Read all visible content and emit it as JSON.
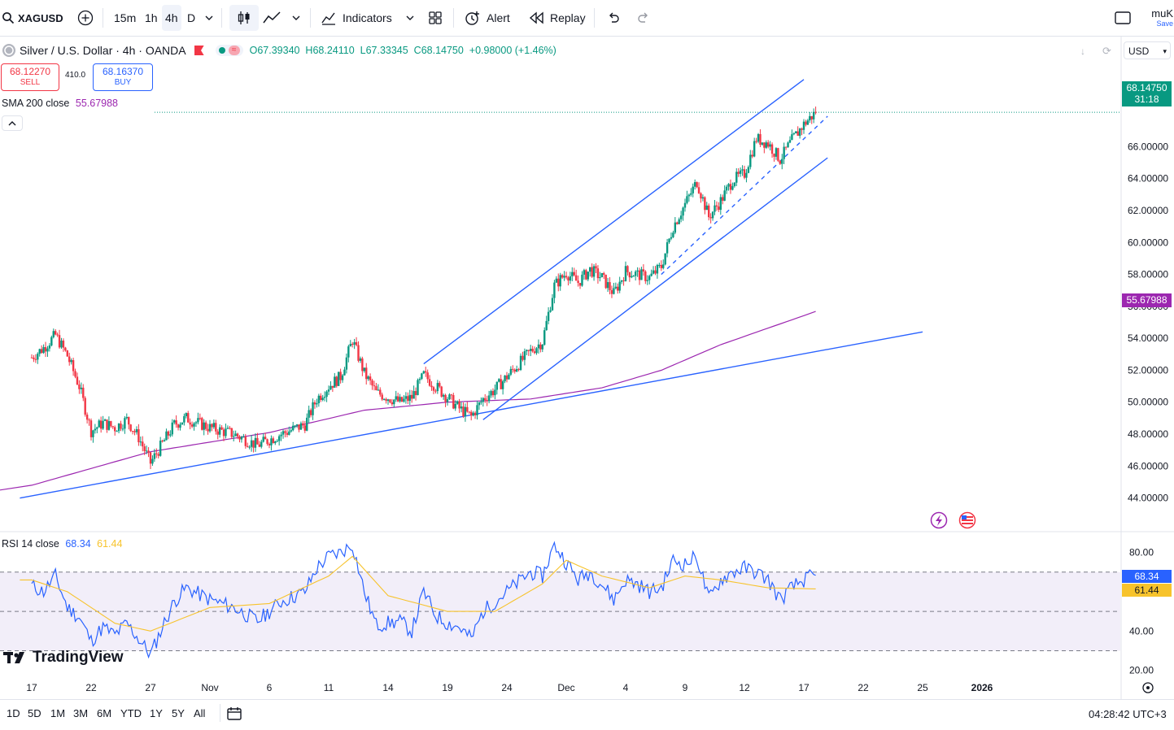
{
  "header": {
    "symbol": "XAGUSD",
    "intervals": [
      "15m",
      "1h",
      "4h",
      "D"
    ],
    "indicators_label": "Indicators",
    "alert_label": "Alert",
    "replay_label": "Replay",
    "user_label": "muK",
    "save_label": "Save",
    "currency": "USD"
  },
  "legend": {
    "title": "Silver / U.S. Dollar · 4h · OANDA",
    "open": "O67.39340",
    "high": "H68.24110",
    "low": "L67.33345",
    "close": "C68.14750",
    "change": "+0.98000 (+1.46%)",
    "sell_price": "68.12270",
    "sell_label": "SELL",
    "spread": "410.0",
    "buy_price": "68.16370",
    "buy_label": "BUY",
    "sma_label": "SMA 200 close",
    "sma_value": "55.67988",
    "rsi_label": "RSI 14 close",
    "rsi_value": "68.34",
    "rsi_ma_value": "61.44"
  },
  "price_tags": {
    "last": "68.14750",
    "countdown": "31:18",
    "sma": "55.67988",
    "rsi": "68.34",
    "rsi_ma": "61.44"
  },
  "footer": {
    "ranges": [
      "1D",
      "5D",
      "1M",
      "3M",
      "6M",
      "YTD",
      "1Y",
      "5Y",
      "All"
    ],
    "clock": "04:28:42 UTC+3",
    "brand": "TradingView"
  },
  "colors": {
    "up": "#089981",
    "down": "#f23645",
    "sma": "#9c27b0",
    "trend": "#2962ff",
    "rsi": "#2962ff",
    "rsi_ma": "#f7c32c",
    "rsi_band": "#7e57c2"
  },
  "chart_data": {
    "type": "candlestick",
    "symbol": "XAGUSD",
    "interval": "4h",
    "y_axis": {
      "ticks": [
        "44.00000",
        "46.00000",
        "48.00000",
        "50.00000",
        "52.00000",
        "54.00000",
        "56.00000",
        "58.00000",
        "60.00000",
        "62.00000",
        "64.00000",
        "66.00000"
      ],
      "range": [
        42.2,
        70.6
      ]
    },
    "x_axis": {
      "ticks": [
        "17",
        "22",
        "27",
        "Nov",
        "6",
        "11",
        "14",
        "19",
        "24",
        "Dec",
        "4",
        "9",
        "12",
        "17",
        "22",
        "25",
        "2026"
      ]
    },
    "price_path": [
      [
        "Oct 17",
        52.8
      ],
      [
        "Oct 18",
        53.4
      ],
      [
        "Oct 19",
        54.2
      ],
      [
        "Oct 20",
        52.9
      ],
      [
        "Oct 21",
        51.0
      ],
      [
        "Oct 22",
        48.2
      ],
      [
        "Oct 23",
        48.7
      ],
      [
        "Oct 24",
        48.4
      ],
      [
        "Oct 25",
        48.9
      ],
      [
        "Oct 26",
        47.8
      ],
      [
        "Oct 27",
        46.2
      ],
      [
        "Oct 28",
        47.4
      ],
      [
        "Oct 29",
        48.6
      ],
      [
        "Oct 30",
        49.0
      ],
      [
        "Nov 1",
        48.4
      ],
      [
        "Nov 3",
        48.0
      ],
      [
        "Nov 5",
        47.3
      ],
      [
        "Nov 7",
        48.0
      ],
      [
        "Nov 9",
        48.6
      ],
      [
        "Nov 10",
        50.2
      ],
      [
        "Nov 11",
        51.0
      ],
      [
        "Nov 12",
        51.6
      ],
      [
        "Nov 13",
        53.9
      ],
      [
        "Nov 14",
        51.8
      ],
      [
        "Nov 15",
        50.6
      ],
      [
        "Nov 17",
        50.0
      ],
      [
        "Nov 18",
        50.3
      ],
      [
        "Nov 19",
        51.7
      ],
      [
        "Nov 20",
        51.0
      ],
      [
        "Nov 21",
        50.3
      ],
      [
        "Nov 22",
        49.6
      ],
      [
        "Nov 23",
        49.1
      ],
      [
        "Nov 24",
        50.2
      ],
      [
        "Nov 25",
        50.8
      ],
      [
        "Nov 26",
        51.6
      ],
      [
        "Nov 27",
        52.4
      ],
      [
        "Nov 28",
        53.2
      ],
      [
        "Nov 29",
        53.8
      ],
      [
        "Nov 30",
        57.3
      ],
      [
        "Dec 1",
        58.1
      ],
      [
        "Dec 2",
        57.5
      ],
      [
        "Dec 3",
        58.3
      ],
      [
        "Dec 4",
        57.8
      ],
      [
        "Dec 5",
        56.8
      ],
      [
        "Dec 6",
        58.2
      ],
      [
        "Dec 7",
        58.0
      ],
      [
        "Dec 8",
        57.8
      ],
      [
        "Dec 9",
        58.5
      ],
      [
        "Dec 10",
        61.0
      ],
      [
        "Dec 11",
        62.4
      ],
      [
        "Dec 12",
        63.8
      ],
      [
        "Dec 13",
        61.6
      ],
      [
        "Dec 14",
        62.6
      ],
      [
        "Dec 15",
        63.9
      ],
      [
        "Dec 16",
        64.3
      ],
      [
        "Dec 17",
        66.5
      ],
      [
        "Dec 18",
        66.2
      ],
      [
        "Dec 19",
        65.2
      ],
      [
        "Dec 20",
        66.4
      ],
      [
        "Dec 21",
        67.4
      ],
      [
        "Dec 22",
        68.1475
      ]
    ],
    "sma_200_path": [
      [
        "Oct 17",
        44.8
      ],
      [
        "Oct 27",
        46.9
      ],
      [
        "Nov 6",
        48.1
      ],
      [
        "Nov 14",
        49.5
      ],
      [
        "Nov 21",
        50.0
      ],
      [
        "Nov 28",
        50.2
      ],
      [
        "Dec 4",
        50.9
      ],
      [
        "Dec 9",
        52.0
      ],
      [
        "Dec 14",
        53.6
      ],
      [
        "Dec 22",
        55.67988
      ]
    ],
    "trend_lines": [
      {
        "label": "long support",
        "from": [
          "Oct 16",
          44.0
        ],
        "to": [
          "Dec 31",
          54.4
        ]
      },
      {
        "label": "channel lower",
        "from": [
          "Nov 24",
          48.9
        ],
        "to": [
          "Dec 23",
          65.3
        ]
      },
      {
        "label": "channel upper",
        "from": [
          "Nov 19",
          52.4
        ],
        "to": [
          "Dec 21",
          70.2
        ]
      },
      {
        "label": "channel mid",
        "dashed": true,
        "from": [
          "Dec 9",
          58.0
        ],
        "to": [
          "Dec 23",
          67.9
        ]
      }
    ],
    "rsi": {
      "period": 14,
      "ticks": [
        "20.00",
        "40.00",
        "80.00"
      ],
      "bands": [
        30,
        50,
        70
      ],
      "path": [
        [
          "Oct 17",
          63
        ],
        [
          "Oct 18",
          60
        ],
        [
          "Oct 19",
          68
        ],
        [
          "Oct 20",
          52
        ],
        [
          "Oct 21",
          47
        ],
        [
          "Oct 22",
          35
        ],
        [
          "Oct 23",
          42
        ],
        [
          "Oct 24",
          38
        ],
        [
          "Oct 25",
          44
        ],
        [
          "Oct 26",
          36
        ],
        [
          "Oct 27",
          28
        ],
        [
          "Oct 28",
          42
        ],
        [
          "Oct 29",
          55
        ],
        [
          "Oct 30",
          62
        ],
        [
          "Nov 1",
          56
        ],
        [
          "Nov 3",
          52
        ],
        [
          "Nov 5",
          45
        ],
        [
          "Nov 7",
          55
        ],
        [
          "Nov 9",
          60
        ],
        [
          "Nov 10",
          72
        ],
        [
          "Nov 11",
          78
        ],
        [
          "Nov 12",
          80
        ],
        [
          "Nov 13",
          84
        ],
        [
          "Nov 14",
          60
        ],
        [
          "Nov 15",
          43
        ],
        [
          "Nov 17",
          45
        ],
        [
          "Nov 18",
          40
        ],
        [
          "Nov 19",
          60
        ],
        [
          "Nov 20",
          48
        ],
        [
          "Nov 21",
          44
        ],
        [
          "Nov 22",
          42
        ],
        [
          "Nov 23",
          36
        ],
        [
          "Nov 24",
          50
        ],
        [
          "Nov 25",
          55
        ],
        [
          "Nov 26",
          60
        ],
        [
          "Nov 27",
          65
        ],
        [
          "Nov 28",
          70
        ],
        [
          "Nov 29",
          68
        ],
        [
          "Nov 30",
          84
        ],
        [
          "Dec 1",
          75
        ],
        [
          "Dec 2",
          66
        ],
        [
          "Dec 3",
          70
        ],
        [
          "Dec 4",
          64
        ],
        [
          "Dec 5",
          56
        ],
        [
          "Dec 6",
          66
        ],
        [
          "Dec 7",
          64
        ],
        [
          "Dec 8",
          60
        ],
        [
          "Dec 9",
          62
        ],
        [
          "Dec 10",
          76
        ],
        [
          "Dec 11",
          74
        ],
        [
          "Dec 12",
          78
        ],
        [
          "Dec 13",
          56
        ],
        [
          "Dec 14",
          66
        ],
        [
          "Dec 15",
          70
        ],
        [
          "Dec 16",
          72
        ],
        [
          "Dec 17",
          70
        ],
        [
          "Dec 18",
          66
        ],
        [
          "Dec 19",
          56
        ],
        [
          "Dec 20",
          62
        ],
        [
          "Dec 21",
          66
        ],
        [
          "Dec 22",
          68.34
        ]
      ],
      "ma_path": [
        [
          "Oct 17",
          66
        ],
        [
          "Oct 20",
          60
        ],
        [
          "Oct 24",
          44
        ],
        [
          "Oct 27",
          40
        ],
        [
          "Nov 1",
          52
        ],
        [
          "Nov 6",
          54
        ],
        [
          "Nov 11",
          68
        ],
        [
          "Nov 13",
          78
        ],
        [
          "Nov 16",
          58
        ],
        [
          "Nov 21",
          50
        ],
        [
          "Nov 25",
          50
        ],
        [
          "Nov 29",
          64
        ],
        [
          "Dec 1",
          76
        ],
        [
          "Dec 4",
          68
        ],
        [
          "Dec 8",
          62
        ],
        [
          "Dec 11",
          68
        ],
        [
          "Dec 14",
          66
        ],
        [
          "Dec 18",
          62
        ],
        [
          "Dec 22",
          61.44
        ]
      ]
    }
  }
}
